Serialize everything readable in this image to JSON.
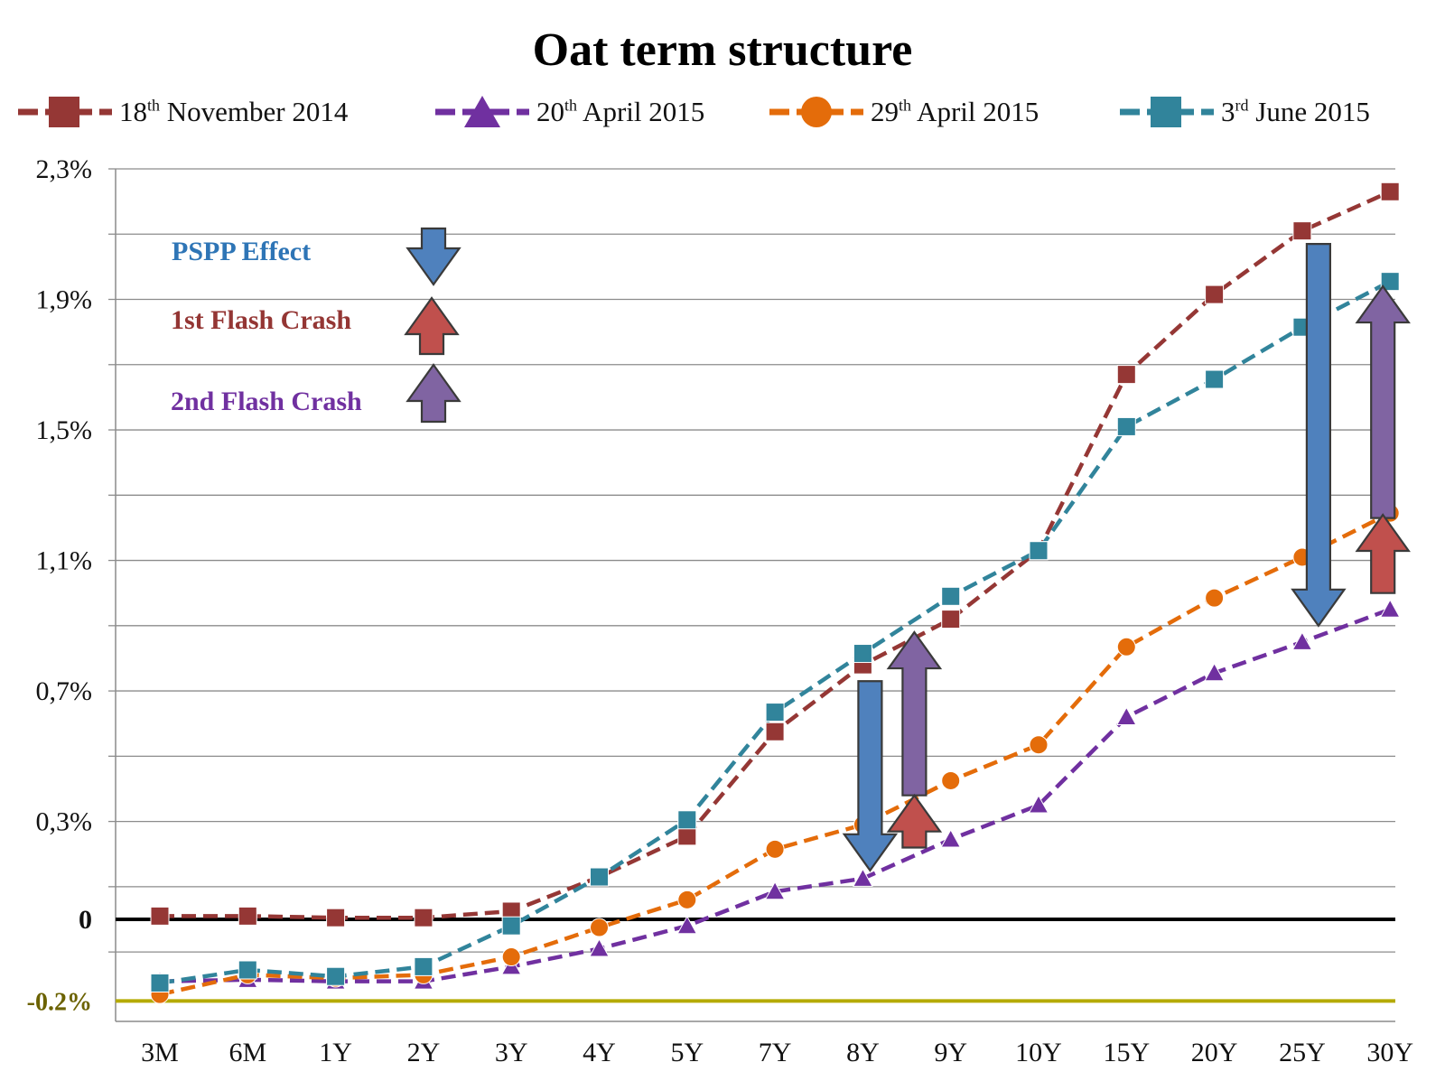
{
  "chart_data": {
    "type": "line",
    "title": "Oat term structure",
    "categories": [
      "3M",
      "6M",
      "1Y",
      "2Y",
      "3Y",
      "4Y",
      "5Y",
      "7Y",
      "8Y",
      "9Y",
      "10Y",
      "15Y",
      "20Y",
      "25Y",
      "30Y"
    ],
    "ylim": [
      -0.3,
      2.3
    ],
    "yticks": [
      {
        "value": 2.3,
        "label": "2,3%"
      },
      {
        "value": 1.9,
        "label": "1,9%"
      },
      {
        "value": 1.5,
        "label": "1,5%"
      },
      {
        "value": 1.1,
        "label": "1,1%"
      },
      {
        "value": 0.7,
        "label": "0,7%"
      },
      {
        "value": 0.3,
        "label": "0,3%"
      },
      {
        "value": 0.0,
        "label": "0"
      },
      {
        "value": -0.25,
        "label": "-0.2%"
      }
    ],
    "grid_values": [
      2.3,
      2.1,
      1.9,
      1.7,
      1.5,
      1.3,
      1.1,
      0.9,
      0.7,
      0.5,
      0.3,
      0.1,
      -0.1
    ],
    "zero_line": 0.0,
    "floor_line": -0.25,
    "series": [
      {
        "name_base": "18",
        "name_sup": "th",
        "name_rest": " November 2014",
        "color": "#953735",
        "marker": "square",
        "values": [
          0.01,
          0.01,
          0.005,
          0.005,
          0.025,
          0.13,
          0.255,
          0.575,
          0.78,
          0.92,
          1.13,
          1.67,
          1.915,
          2.11,
          2.23
        ]
      },
      {
        "name_base": "20",
        "name_sup": "th",
        "name_rest": " April 2015",
        "color": "#7030a0",
        "marker": "triangle",
        "values": [
          -0.19,
          -0.185,
          -0.19,
          -0.19,
          -0.145,
          -0.09,
          -0.02,
          0.085,
          0.125,
          0.245,
          0.35,
          0.62,
          0.755,
          0.85,
          0.95
        ]
      },
      {
        "name_base": "29",
        "name_sup": "th",
        "name_rest": " April 2015",
        "color": "#e46c0a",
        "marker": "circle",
        "values": [
          -0.23,
          -0.17,
          -0.18,
          -0.17,
          -0.115,
          -0.025,
          0.06,
          0.215,
          0.29,
          0.425,
          0.535,
          0.835,
          0.985,
          1.11,
          1.245
        ]
      },
      {
        "name_base": "3",
        "name_sup": "rd",
        "name_rest": " June 2015",
        "color": "#31849b",
        "marker": "square",
        "values": [
          -0.195,
          -0.155,
          -0.175,
          -0.145,
          -0.02,
          0.13,
          0.305,
          0.635,
          0.815,
          0.99,
          1.13,
          1.51,
          1.655,
          1.815,
          1.955
        ]
      }
    ]
  },
  "annotations": {
    "pspp": {
      "label": "PSPP Effect",
      "color": "#2e75b6",
      "arrow_fill": "#4f81bd"
    },
    "flash1": {
      "label": "1st Flash Crash",
      "color": "#943634",
      "arrow_fill": "#c0504d"
    },
    "flash2": {
      "label": "2nd Flash Crash",
      "color": "#7030a0",
      "arrow_fill": "#8064a2"
    }
  },
  "arrows": [
    {
      "kind": "pspp",
      "category": "8Y",
      "from": 0.73,
      "to": 0.15
    },
    {
      "kind": "flash2",
      "category": "9Y",
      "from": 0.38,
      "to": 0.88
    },
    {
      "kind": "flash1",
      "category": "9Y",
      "from": 0.22,
      "to": 0.38
    },
    {
      "kind": "pspp",
      "category": "25Y",
      "from": 2.07,
      "to": 0.9
    },
    {
      "kind": "flash2",
      "category": "30Y",
      "from": 1.23,
      "to": 1.94
    },
    {
      "kind": "flash1",
      "category": "30Y",
      "from": 1.0,
      "to": 1.24
    }
  ]
}
